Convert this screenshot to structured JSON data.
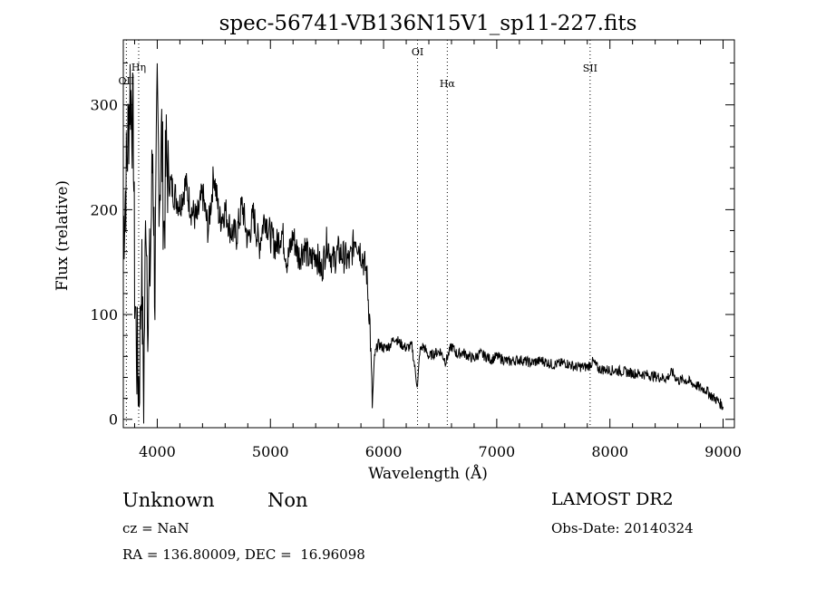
{
  "chart_data": {
    "type": "line",
    "title": "spec-56741-VB136N15V1_sp11-227.fits",
    "xlabel": "Wavelength (Å)",
    "ylabel": "Flux (relative)",
    "xlim": [
      3700,
      9100
    ],
    "ylim": [
      -8,
      362
    ],
    "xticks": [
      4000,
      5000,
      6000,
      7000,
      8000,
      9000
    ],
    "yticks": [
      0,
      100,
      200,
      300
    ],
    "grid": false,
    "line_color": "#000000",
    "series": [
      {
        "x": [
          3700,
          3730,
          3760,
          3790,
          3800,
          3820,
          3840,
          3860,
          3880,
          3900,
          3920,
          3940,
          3960,
          3980,
          4000,
          4020,
          4040,
          4060,
          4080,
          4100,
          4150,
          4200,
          4250,
          4300,
          4350,
          4400,
          4450,
          4500,
          4550,
          4600,
          4650,
          4700,
          4750,
          4800,
          4850,
          4900,
          4950,
          5000,
          5050,
          5100,
          5150,
          5200,
          5250,
          5300,
          5350,
          5400,
          5450,
          5500,
          5550,
          5600,
          5650,
          5700,
          5750,
          5800,
          5850,
          5880,
          5900,
          5920,
          5950,
          6000,
          6050,
          6100,
          6150,
          6200,
          6250,
          6300,
          6320,
          6350,
          6400,
          6450,
          6500,
          6550,
          6600,
          6650,
          6700,
          6750,
          6800,
          6850,
          6900,
          6950,
          7000,
          7100,
          7200,
          7300,
          7400,
          7500,
          7600,
          7700,
          7800,
          7850,
          7900,
          8000,
          8100,
          8200,
          8300,
          8400,
          8500,
          8550,
          8600,
          8650,
          8700,
          8750,
          8800,
          8850,
          8900,
          8950,
          9000
        ],
        "y": [
          180,
          240,
          320,
          270,
          130,
          60,
          30,
          150,
          25,
          210,
          90,
          160,
          260,
          120,
          300,
          220,
          270,
          180,
          250,
          230,
          215,
          205,
          225,
          200,
          190,
          215,
          180,
          235,
          190,
          200,
          180,
          175,
          205,
          170,
          195,
          165,
          195,
          175,
          165,
          180,
          150,
          175,
          155,
          165,
          150,
          160,
          140,
          170,
          150,
          160,
          155,
          150,
          175,
          160,
          140,
          90,
          12,
          60,
          72,
          68,
          70,
          78,
          72,
          68,
          70,
          30,
          65,
          70,
          60,
          63,
          65,
          55,
          70,
          62,
          64,
          60,
          58,
          63,
          60,
          57,
          60,
          55,
          57,
          54,
          56,
          52,
          54,
          50,
          50,
          55,
          48,
          47,
          46,
          44,
          43,
          41,
          39,
          45,
          37,
          38,
          36,
          33,
          30,
          28,
          22,
          18,
          12
        ]
      }
    ],
    "annotations": [
      {
        "label": "OII",
        "x": 3727
      },
      {
        "label": "Hη",
        "x": 3836
      },
      {
        "label": "OI",
        "x": 6300
      },
      {
        "label": "Hα",
        "x": 6563
      },
      {
        "label": "SII",
        "x": 7825
      }
    ]
  },
  "info": {
    "class_text": "Unknown",
    "subclass_text": "Non",
    "survey_text": "LAMOST DR2",
    "cz_text": "cz = NaN",
    "obs_date_text": "Obs-Date: 20140324",
    "radec_text": "RA = 136.80009, DEC =  16.96098"
  }
}
